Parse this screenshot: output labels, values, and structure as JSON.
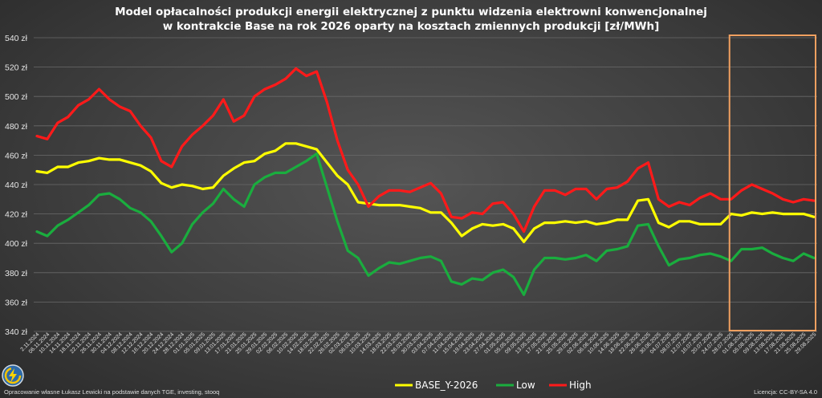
{
  "chart_data": {
    "type": "line",
    "title_line1": "Model opłacalności produkcji energii elektrycznej z punktu widzenia elektrowni konwencjonalnej",
    "title_line2": "w kontrakcie Base na rok 2026 oparty na kosztach zmiennych produkcji [zł/MWh]",
    "ylim": [
      340,
      540
    ],
    "y_ticks": [
      "340 zł",
      "360 zł",
      "380 zł",
      "400 zł",
      "420 zł",
      "440 zł",
      "460 zł",
      "480 zł",
      "500 zł",
      "520 zł",
      "540 zł"
    ],
    "grid": true,
    "legend_position": "bottom",
    "x_labels": [
      "2.11.2024",
      "06.11.2024",
      "10.11.2024",
      "14.11.2024",
      "18.11.2024",
      "22.11.2024",
      "26.11.2024",
      "30.11.2024",
      "04.12.2024",
      "08.12.2024",
      "12.12.2024",
      "16.12.2024",
      "20.12.2024",
      "24.12.2024",
      "28.12.2024",
      "01.01.2025",
      "05.01.2025",
      "09.01.2025",
      "13.01.2025",
      "17.01.2025",
      "21.01.2025",
      "25.01.2025",
      "29.01.2025",
      "02.02.2025",
      "06.02.2025",
      "10.02.2025",
      "14.02.2025",
      "18.02.2025",
      "22.02.2025",
      "26.02.2025",
      "02.03.2025",
      "06.03.2025",
      "10.03.2025",
      "14.03.2025",
      "18.03.2025",
      "22.03.2025",
      "26.03.2025",
      "30.03.2025",
      "03.04.2025",
      "07.04.2025",
      "11.04.2025",
      "15.04.2025",
      "19.04.2025",
      "23.04.2025",
      "27.04.2025",
      "01.05.2025",
      "05.05.2025",
      "09.05.2025",
      "13.05.2025",
      "17.05.2025",
      "21.05.2025",
      "25.05.2025",
      "29.05.2025",
      "02.06.2025",
      "06.06.2025",
      "10.06.2025",
      "14.06.2025",
      "18.06.2025",
      "22.06.2025",
      "26.06.2025",
      "30.06.2025",
      "04.07.2025",
      "08.07.2025",
      "12.07.2025",
      "16.07.2025",
      "20.07.2025",
      "24.07.2025",
      "28.07.2025",
      "01.08.2025",
      "05.08.2025",
      "09.08.2025",
      "13.08.2025",
      "17.08.2025",
      "21.08.2025",
      "25.08.2025",
      "29.08.2025"
    ],
    "series": [
      {
        "name": "BASE_Y-2026",
        "color": "#ffff00",
        "values": [
          449,
          448,
          452,
          452,
          455,
          456,
          458,
          457,
          457,
          455,
          453,
          449,
          441,
          438,
          440,
          439,
          437,
          438,
          446,
          451,
          455,
          456,
          461,
          463,
          468,
          468,
          466,
          464,
          455,
          446,
          440,
          428,
          427,
          426,
          426,
          426,
          425,
          424,
          421,
          421,
          414,
          405,
          410,
          413,
          412,
          413,
          410,
          401,
          410,
          414,
          414,
          415,
          414,
          415,
          413,
          414,
          416,
          416,
          429,
          430,
          414,
          411,
          415,
          415,
          413,
          413,
          413,
          420,
          419,
          421,
          420,
          421,
          420,
          420,
          420,
          418
        ]
      },
      {
        "name": "Low",
        "color": "#1aad3e",
        "values": [
          408,
          405,
          412,
          416,
          421,
          426,
          433,
          434,
          430,
          424,
          421,
          415,
          405,
          394,
          400,
          413,
          421,
          427,
          437,
          430,
          425,
          440,
          445,
          448,
          448,
          452,
          456,
          461,
          438,
          415,
          395,
          390,
          378,
          383,
          387,
          386,
          388,
          390,
          391,
          388,
          374,
          372,
          376,
          375,
          380,
          382,
          377,
          365,
          382,
          390,
          390,
          389,
          390,
          392,
          388,
          395,
          396,
          398,
          412,
          413,
          398,
          385,
          389,
          390,
          392,
          393,
          391,
          388,
          396,
          396,
          397,
          393,
          390,
          388,
          393,
          390
        ]
      },
      {
        "name": "High",
        "color": "#ff1a1a",
        "values": [
          473,
          471,
          482,
          486,
          494,
          498,
          505,
          498,
          493,
          490,
          480,
          472,
          456,
          452,
          466,
          474,
          480,
          487,
          498,
          483,
          487,
          500,
          505,
          508,
          512,
          519,
          514,
          517,
          496,
          470,
          450,
          440,
          425,
          432,
          436,
          436,
          435,
          438,
          441,
          434,
          418,
          417,
          421,
          420,
          427,
          428,
          420,
          408,
          425,
          436,
          436,
          433,
          437,
          437,
          430,
          437,
          438,
          442,
          451,
          455,
          430,
          425,
          428,
          426,
          431,
          434,
          430,
          430,
          436,
          440,
          437,
          434,
          430,
          428,
          430,
          429
        ]
      }
    ]
  },
  "legend": {
    "items": [
      {
        "label": "BASE_Y-2026",
        "color": "#ffff00"
      },
      {
        "label": "Low",
        "color": "#1aad3e"
      },
      {
        "label": "High",
        "color": "#ff1a1a"
      }
    ]
  },
  "highlight_box": {
    "start_label": "28.07.2025",
    "end_label": "29.08.2025",
    "color": "#f0a060"
  },
  "footer": {
    "credit": "Opracowanie własne Łukasz Lewicki na podstawie danych TGE, investing, stooq",
    "license": "Licencja: CC-BY-SA 4.0",
    "logo_icon": "lightning-bolt-logo"
  }
}
